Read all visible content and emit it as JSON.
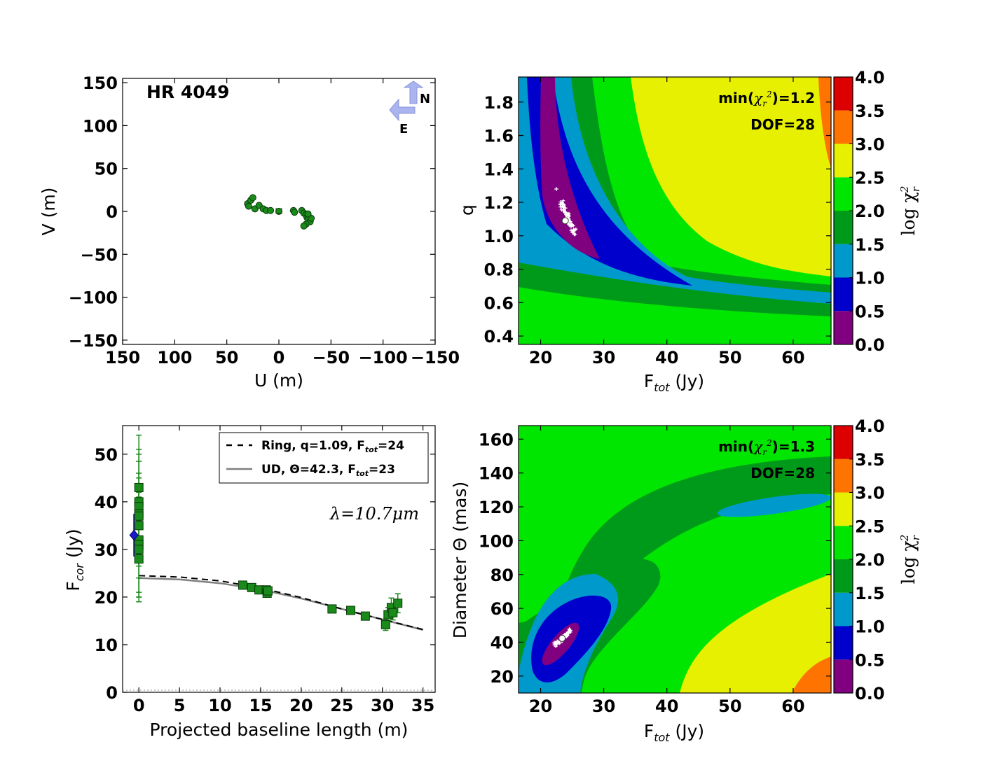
{
  "chart_data": [
    {
      "type": "scatter",
      "id": "uv",
      "title": "HR 4049",
      "xlabel": "U (m)",
      "ylabel": "V (m)",
      "xlim": [
        150,
        -150
      ],
      "ylim": [
        -155,
        155
      ],
      "xticks": [
        "150",
        "100",
        "50",
        "0",
        "−50",
        "−100",
        "−150"
      ],
      "yticks": [
        "150",
        "100",
        "50",
        "0",
        "−50",
        "−100",
        "−150"
      ],
      "compass": {
        "north": "N",
        "east": "E",
        "color": "#aab4ee"
      },
      "marker_color": "#1a8a1a",
      "x": [
        30,
        29,
        27,
        25,
        23,
        19,
        15,
        12,
        8,
        0,
        -14,
        -15,
        -22,
        -24,
        -26,
        -27,
        -28,
        -30,
        -31,
        -28,
        -26,
        -24
      ],
      "y": [
        9,
        6,
        13,
        16,
        3,
        7,
        3,
        1,
        1,
        0,
        1,
        -1,
        1,
        -2,
        -4,
        -7,
        -9,
        -12,
        -8,
        -3,
        -15,
        -17
      ]
    },
    {
      "type": "heatmap",
      "id": "ring",
      "xlabel_main": "F",
      "xlabel_sub": "tot",
      "xlabel_unit": " (Jy)",
      "ylabel": "q",
      "xlim": [
        16.5,
        66
      ],
      "ylim": [
        0.35,
        1.95
      ],
      "xticks": [
        "20",
        "30",
        "40",
        "50",
        "60"
      ],
      "yticks": [
        "0.4",
        "0.6",
        "0.8",
        "1.0",
        "1.2",
        "1.4",
        "1.6",
        "1.8"
      ],
      "min_label_pre": "min(",
      "min_label_post": ")=1.2",
      "dof_label": "DOF=28",
      "best_fit": [
        23.9,
        1.09
      ]
    },
    {
      "type": "scatter",
      "id": "fcor",
      "xlabel": "Projected baseline length (m)",
      "ylabel_main": "F",
      "ylabel_sub": "cor",
      "ylabel_unit": " (Jy)",
      "xlim": [
        -2,
        36.5
      ],
      "ylim": [
        0,
        56
      ],
      "xticks": [
        "0",
        "5",
        "10",
        "15",
        "20",
        "25",
        "30",
        "35"
      ],
      "yticks": [
        "0",
        "10",
        "20",
        "30",
        "40",
        "50"
      ],
      "wavelength_label": "λ=10.7μm",
      "marker_color": "#1a8a1a",
      "legend": [
        {
          "pre": "Ring, q=1.09, F",
          "sub": "tot",
          "post": "=24",
          "style": "dashed",
          "color": "#000000"
        },
        {
          "pre": "UD, Θ=42.3, F",
          "sub": "tot",
          "post": "=23",
          "style": "solid",
          "color": "#808080"
        }
      ],
      "points_x": [
        0,
        0,
        0,
        0,
        0,
        0,
        0,
        0,
        0,
        0,
        12.8,
        13.9,
        14.8,
        15.7,
        15.8,
        15.9,
        23.8,
        26.1,
        27.9,
        30.4,
        30.7,
        31.1,
        31.3,
        31.9
      ],
      "points_y": [
        43,
        40,
        39,
        37.5,
        35,
        32,
        31,
        30,
        28,
        37,
        22.5,
        22,
        21.5,
        21.5,
        20.8,
        21.3,
        17.5,
        17.2,
        16,
        14.2,
        16.3,
        17.8,
        16.7,
        18.7
      ],
      "points_err": [
        11,
        11,
        11,
        11,
        11,
        11,
        11,
        11,
        8,
        8,
        0.8,
        0.8,
        0.8,
        0.8,
        0.8,
        0.8,
        0.8,
        0.8,
        0.8,
        1.2,
        1.5,
        2,
        1.5,
        2
      ],
      "single_dish": {
        "x": -0.6,
        "y": 33,
        "color": "#1a1acc"
      },
      "ring_model": {
        "x": [
          0,
          5,
          10,
          15,
          20,
          25,
          30,
          35
        ],
        "y": [
          24.5,
          24.2,
          23.4,
          21.9,
          19.9,
          17.5,
          15.3,
          13.2
        ]
      },
      "ud_model": {
        "x": [
          0,
          5,
          10,
          15,
          20,
          25,
          30,
          35
        ],
        "y": [
          24,
          23.7,
          22.9,
          21.6,
          19.7,
          17.5,
          15.3,
          13.1
        ]
      }
    },
    {
      "type": "heatmap",
      "id": "ud",
      "xlabel_main": "F",
      "xlabel_sub": "tot",
      "xlabel_unit": " (Jy)",
      "ylabel": "Diameter Θ (mas)",
      "xlim": [
        16.5,
        66
      ],
      "ylim": [
        10,
        168
      ],
      "xticks": [
        "20",
        "30",
        "40",
        "50",
        "60"
      ],
      "yticks": [
        "20",
        "40",
        "60",
        "80",
        "100",
        "120",
        "140",
        "160"
      ],
      "min_label_pre": "min(",
      "min_label_post": ")=1.3",
      "dof_label": "DOF=28",
      "best_fit": [
        23.4,
        42.3
      ]
    }
  ],
  "colorbar": {
    "label": "log χ",
    "label_sub": "r",
    "label_sup": "2",
    "ticks": [
      "0.0",
      "0.5",
      "1.0",
      "1.5",
      "2.0",
      "2.5",
      "3.0",
      "3.5",
      "4.0"
    ],
    "colors": [
      "#800080",
      "#0000cd",
      "#0099cc",
      "#009a1a",
      "#00e600",
      "#e6f000",
      "#ff7300",
      "#dd0000"
    ]
  },
  "chi_symbol": "χ",
  "chi_sub": "r",
  "chi_sup": "2"
}
